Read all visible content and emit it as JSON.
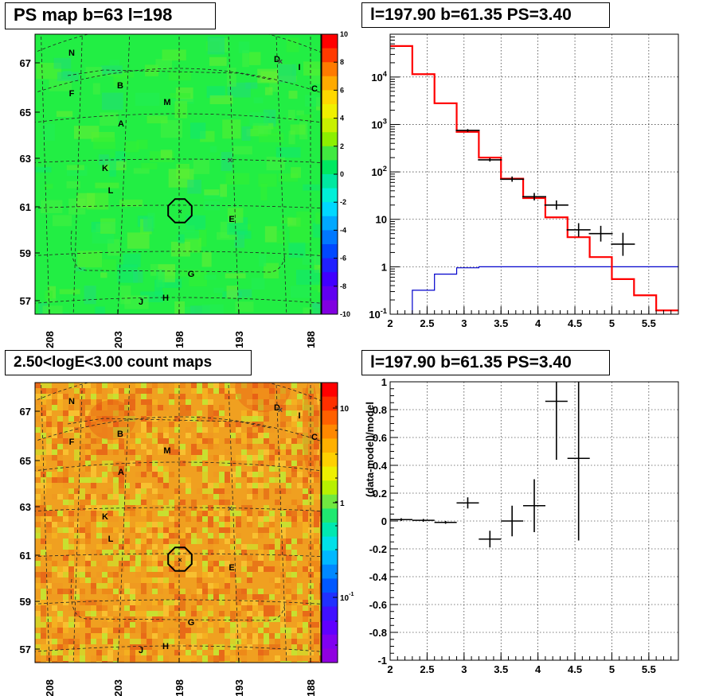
{
  "titles": {
    "ps_map": "PS map b=63 l=198",
    "spectrum": "l=197.90 b=61.35 PS=3.40",
    "count_map": "2.50<logE<3.00 count maps",
    "residual": "l=197.90 b=61.35 PS=3.40"
  },
  "colors": {
    "model": "#ff0000",
    "background": "#0000cc",
    "data": "#000000",
    "marker": "#000000"
  },
  "chart_data": [
    {
      "id": "ps_map",
      "type": "heatmap",
      "title": "PS map b=63 l=198",
      "x_ticks": [
        "208",
        "203",
        "198",
        "193",
        "188"
      ],
      "y_ticks": [
        "67",
        "65",
        "63",
        "61",
        "59",
        "57"
      ],
      "colorbar_ticks": [
        "10",
        "8",
        "6",
        "4",
        "2",
        "0",
        "-2",
        "-4",
        "-6",
        "-8",
        "-10"
      ],
      "colorbar_range": [
        -10,
        10
      ],
      "dominant_level": 1,
      "source_labels": [
        "N",
        "D",
        "I",
        "C",
        "B",
        "F",
        "M",
        "A",
        "K",
        "L",
        "E",
        "G",
        "J",
        "H"
      ]
    },
    {
      "id": "spectrum",
      "type": "line",
      "title": "l=197.90 b=61.35 PS=3.40",
      "y_scale": "log",
      "xlim": [
        2,
        5.9
      ],
      "ylim": [
        0.1,
        80000
      ],
      "x_ticks": [
        "2",
        "2.5",
        "3",
        "3.5",
        "4",
        "4.5",
        "5",
        "5.5"
      ],
      "y_ticks": [
        "10^-1",
        "1",
        "10",
        "10^2",
        "10^3",
        "10^4"
      ],
      "bin_edges": [
        2.0,
        2.3,
        2.6,
        2.9,
        3.2,
        3.5,
        3.8,
        4.1,
        4.4,
        4.7,
        5.0,
        5.3,
        5.6,
        5.9
      ],
      "series": [
        {
          "values": [
            45000,
            11500,
            2800,
            700,
            200,
            72,
            28,
            11,
            4.2,
            1.6,
            0.55,
            0.25,
            0.12
          ]
        },
        {
          "values": [
            0,
            0.32,
            0.7,
            0.95,
            1.0,
            1.0,
            1.0,
            1.0,
            1.0,
            1.0,
            1.0,
            1.0,
            1.0
          ]
        }
      ],
      "points": [
        {
          "x": 3.05,
          "y": 750,
          "ylo": 700,
          "yhi": 800
        },
        {
          "x": 3.35,
          "y": 180,
          "ylo": 165,
          "yhi": 195
        },
        {
          "x": 3.65,
          "y": 70,
          "ylo": 62,
          "yhi": 80
        },
        {
          "x": 3.95,
          "y": 30,
          "ylo": 25,
          "yhi": 36
        },
        {
          "x": 4.25,
          "y": 20,
          "ylo": 16,
          "yhi": 25
        },
        {
          "x": 4.55,
          "y": 6,
          "ylo": 4.3,
          "yhi": 8.3
        },
        {
          "x": 4.85,
          "y": 5,
          "ylo": 3.4,
          "yhi": 7.3
        },
        {
          "x": 5.15,
          "y": 3,
          "ylo": 1.7,
          "yhi": 5.2
        }
      ]
    },
    {
      "id": "count_map",
      "type": "heatmap",
      "title": "2.50<logE<3.00 count maps",
      "x_ticks": [
        "208",
        "203",
        "198",
        "193",
        "188"
      ],
      "y_ticks": [
        "67",
        "65",
        "63",
        "61",
        "59",
        "57"
      ],
      "colorbar_ticks": [
        "10",
        "1",
        "10^-1"
      ],
      "colorbar_scale": "log",
      "dominant_level": 5,
      "source_labels": [
        "N",
        "D",
        "I",
        "C",
        "B",
        "F",
        "M",
        "A",
        "K",
        "L",
        "E",
        "G",
        "J",
        "H"
      ]
    },
    {
      "id": "residual",
      "type": "scatter",
      "title": "l=197.90 b=61.35 PS=3.40",
      "ylabel": "(data-model)/model",
      "xlim": [
        2,
        5.9
      ],
      "ylim": [
        -1,
        1
      ],
      "x_ticks": [
        "2",
        "2.5",
        "3",
        "3.5",
        "4",
        "4.5",
        "5",
        "5.5"
      ],
      "y_ticks": [
        "1",
        "0.8",
        "0.6",
        "0.4",
        "0.2",
        "0",
        "-0.2",
        "-0.4",
        "-0.6",
        "-0.8",
        "-1"
      ],
      "points": [
        {
          "x": 2.15,
          "y": 0.01,
          "ylo": 0.0,
          "yhi": 0.02
        },
        {
          "x": 2.45,
          "y": 0.005,
          "ylo": -0.005,
          "yhi": 0.015
        },
        {
          "x": 2.75,
          "y": -0.01,
          "ylo": -0.02,
          "yhi": 0.0
        },
        {
          "x": 3.05,
          "y": 0.13,
          "ylo": 0.09,
          "yhi": 0.17
        },
        {
          "x": 3.35,
          "y": -0.13,
          "ylo": -0.19,
          "yhi": -0.07
        },
        {
          "x": 3.65,
          "y": 0.0,
          "ylo": -0.11,
          "yhi": 0.11
        },
        {
          "x": 3.95,
          "y": 0.11,
          "ylo": -0.08,
          "yhi": 0.3
        },
        {
          "x": 4.25,
          "y": 0.86,
          "ylo": 0.44,
          "yhi": 1.0
        },
        {
          "x": 4.55,
          "y": 0.45,
          "ylo": -0.14,
          "yhi": 1.0
        }
      ]
    }
  ]
}
